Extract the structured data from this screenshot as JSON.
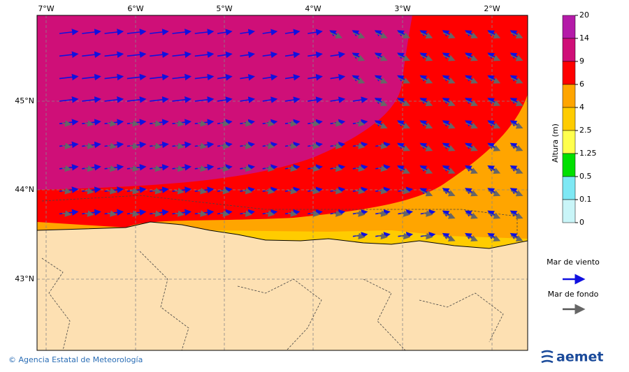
{
  "map": {
    "lon_labels": [
      "7°W",
      "6°W",
      "5°W",
      "4°W",
      "3°W",
      "2°W"
    ],
    "lat_labels": [
      "45°N",
      "44°N",
      "43°N"
    ],
    "colorbar": {
      "title": "Altura (m)",
      "levels": [
        20,
        14,
        9,
        6,
        4,
        2.5,
        1.25,
        0.5,
        0.1,
        0
      ],
      "colors": [
        "#b41ba8",
        "#cf0f78",
        "#ff0000",
        "#ffa500",
        "#ffcc00",
        "#ffff4d",
        "#00e000",
        "#7ee8f4",
        "#c9f5f8"
      ]
    },
    "legend": [
      "Mar de viento",
      "Mar de fondo"
    ]
  },
  "footer": {
    "copyright": "© Agencia Estatal de Meteorología",
    "logo": "aemet"
  }
}
